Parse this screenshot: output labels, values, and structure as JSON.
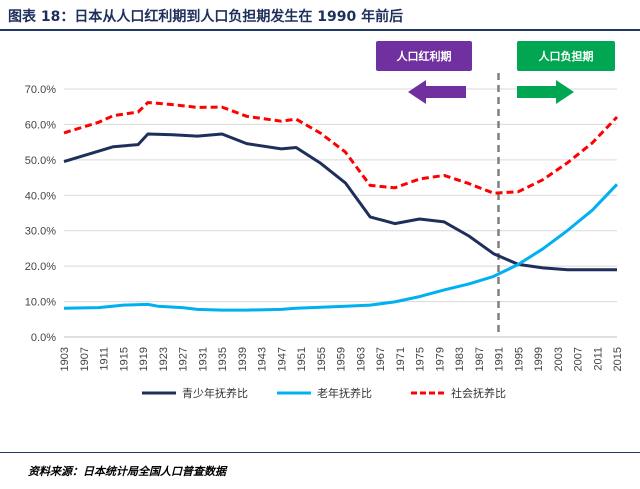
{
  "title": "图表 18：日本从人口红利期到人口负担期发生在 1990 年前后",
  "source": "资料来源：日本统计局全国人口普查数据",
  "annotations": {
    "left_label": "人口红利期",
    "right_label": "人口负担期",
    "left_color": "#7030a0",
    "right_color": "#00a651"
  },
  "colors": {
    "youth": "#1f2f5c",
    "elderly": "#00b0f0",
    "total": "#ff0000",
    "divider": "#808080",
    "header": "#1f3864"
  },
  "chart_data": {
    "type": "line",
    "title": "",
    "xlabel": "",
    "ylabel": "",
    "ylim": [
      0,
      70
    ],
    "y_ticks": [
      "0.0%",
      "10.0%",
      "20.0%",
      "30.0%",
      "40.0%",
      "50.0%",
      "60.0%",
      "70.0%"
    ],
    "x_range": [
      1903,
      2015
    ],
    "x_ticks": [
      1903,
      1907,
      1911,
      1915,
      1919,
      1923,
      1927,
      1931,
      1935,
      1939,
      1943,
      1947,
      1951,
      1955,
      1959,
      1963,
      1967,
      1971,
      1975,
      1979,
      1983,
      1987,
      1991,
      1995,
      1999,
      2003,
      2007,
      2011,
      2015
    ],
    "divider_year": 1991,
    "series": [
      {
        "name": "青少年抚养比",
        "key": "youth",
        "style": "solid",
        "points": [
          [
            1903,
            49.5
          ],
          [
            1913,
            53.7
          ],
          [
            1918,
            54.3
          ],
          [
            1920,
            57.3
          ],
          [
            1925,
            57.1
          ],
          [
            1930,
            56.7
          ],
          [
            1935,
            57.3
          ],
          [
            1940,
            54.6
          ],
          [
            1947,
            53.1
          ],
          [
            1950,
            53.5
          ],
          [
            1955,
            49.0
          ],
          [
            1960,
            43.5
          ],
          [
            1965,
            33.9
          ],
          [
            1970,
            32.0
          ],
          [
            1975,
            33.3
          ],
          [
            1980,
            32.5
          ],
          [
            1985,
            28.5
          ],
          [
            1990,
            23.5
          ],
          [
            1995,
            20.5
          ],
          [
            2000,
            19.5
          ],
          [
            2005,
            19.0
          ],
          [
            2010,
            19.0
          ],
          [
            2015,
            19.0
          ]
        ]
      },
      {
        "name": "老年抚养比",
        "key": "elderly",
        "style": "solid",
        "points": [
          [
            1903,
            8.1
          ],
          [
            1910,
            8.3
          ],
          [
            1915,
            9.0
          ],
          [
            1920,
            9.2
          ],
          [
            1922,
            8.7
          ],
          [
            1927,
            8.3
          ],
          [
            1930,
            7.8
          ],
          [
            1935,
            7.6
          ],
          [
            1940,
            7.6
          ],
          [
            1947,
            7.8
          ],
          [
            1950,
            8.1
          ],
          [
            1955,
            8.4
          ],
          [
            1960,
            8.7
          ],
          [
            1965,
            9.0
          ],
          [
            1970,
            9.9
          ],
          [
            1975,
            11.4
          ],
          [
            1980,
            13.3
          ],
          [
            1985,
            15.0
          ],
          [
            1990,
            17.1
          ],
          [
            1995,
            20.5
          ],
          [
            2000,
            24.9
          ],
          [
            2005,
            30.1
          ],
          [
            2010,
            35.8
          ],
          [
            2015,
            43.1
          ]
        ]
      },
      {
        "name": "社会抚养比",
        "key": "total",
        "style": "dashed",
        "points": [
          [
            1903,
            57.6
          ],
          [
            1910,
            60.6
          ],
          [
            1913,
            62.5
          ],
          [
            1918,
            63.5
          ],
          [
            1920,
            66.2
          ],
          [
            1925,
            65.6
          ],
          [
            1930,
            64.8
          ],
          [
            1935,
            64.9
          ],
          [
            1940,
            62.3
          ],
          [
            1947,
            60.9
          ],
          [
            1950,
            61.5
          ],
          [
            1955,
            57.5
          ],
          [
            1960,
            52.2
          ],
          [
            1965,
            42.8
          ],
          [
            1970,
            42.1
          ],
          [
            1975,
            44.6
          ],
          [
            1980,
            45.6
          ],
          [
            1985,
            43.3
          ],
          [
            1990,
            40.6
          ],
          [
            1995,
            41.0
          ],
          [
            2000,
            44.4
          ],
          [
            2005,
            49.2
          ],
          [
            2010,
            54.8
          ],
          [
            2015,
            62.1
          ]
        ]
      }
    ]
  }
}
